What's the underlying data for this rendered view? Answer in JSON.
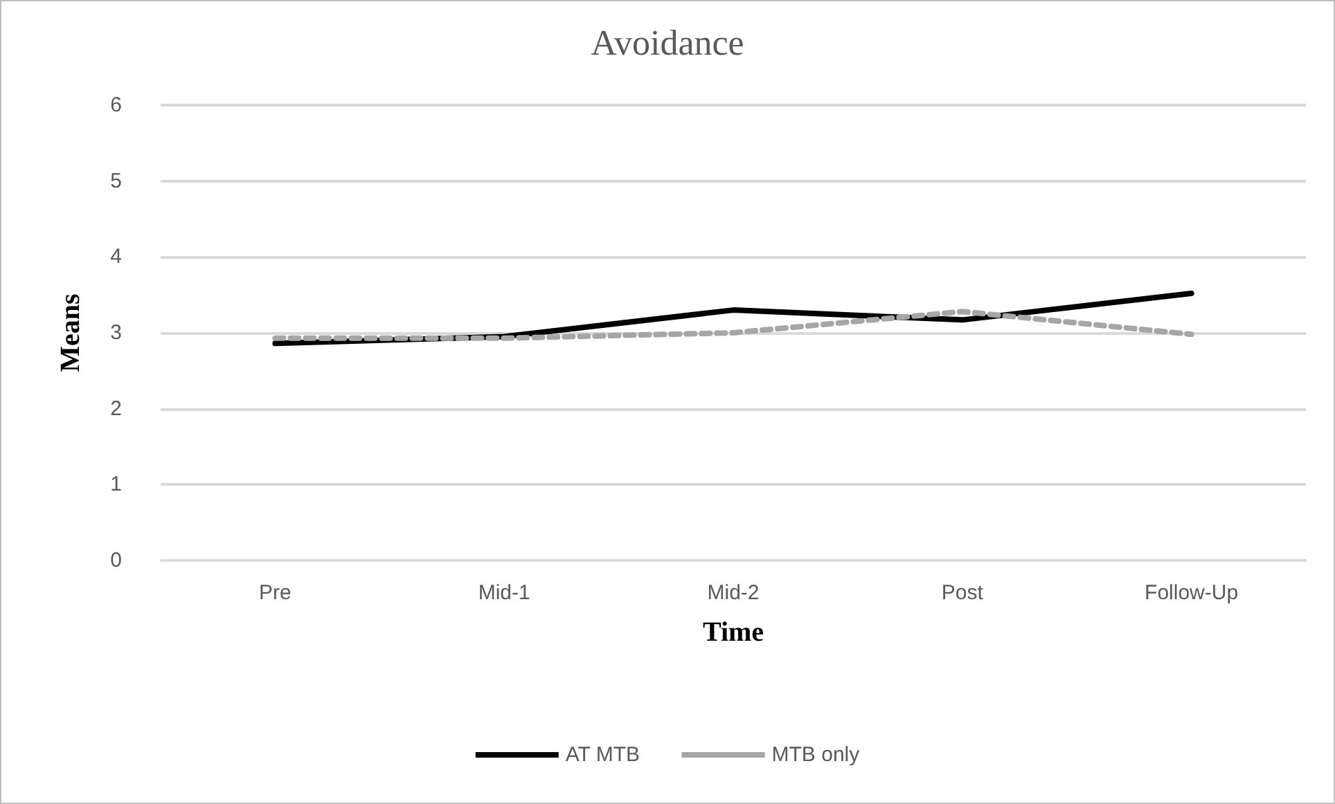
{
  "chart_data": {
    "type": "line",
    "title": "Avoidance",
    "xlabel": "Time",
    "ylabel": "Means",
    "categories": [
      "Pre",
      "Mid-1",
      "Mid-2",
      "Post",
      "Follow-Up"
    ],
    "series": [
      {
        "name": "AT MTB",
        "color": "#000000",
        "line_style": "solid",
        "values": [
          2.86,
          2.95,
          3.3,
          3.17,
          3.52
        ]
      },
      {
        "name": "MTB only",
        "color": "#a6a6a6",
        "line_style": "dashed",
        "values": [
          2.93,
          2.93,
          3.0,
          3.28,
          2.98
        ]
      }
    ],
    "ylim": [
      0,
      6
    ],
    "yticks": [
      0,
      1,
      2,
      3,
      4,
      5,
      6
    ],
    "grid": "y",
    "legend": "bottom",
    "marker": "none"
  }
}
